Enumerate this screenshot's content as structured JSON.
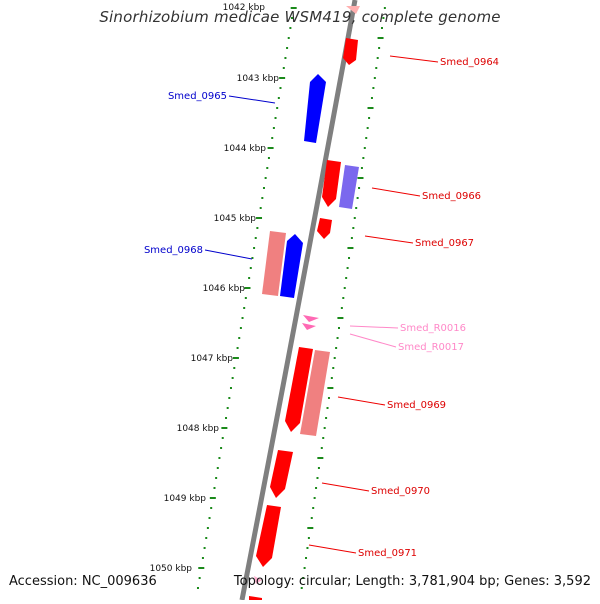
{
  "title": "Sinorhizobium medicae WSM419, complete genome",
  "footer": {
    "accession": "Accession: NC_009636",
    "summary": "Topology: circular; Length: 3,781,904 bp; Genes: 3,592"
  },
  "scale": {
    "ticks": [
      "1042 kbp",
      "1043 kbp",
      "1044 kbp",
      "1045 kbp",
      "1046 kbp",
      "1047 kbp",
      "1048 kbp",
      "1049 kbp",
      "1050 kbp"
    ]
  },
  "colors": {
    "forward_gene": "#ff0000",
    "forward_gene_light": "#f08080",
    "reverse_gene": "#0000ff",
    "reverse_gene_light": "#7b68ee",
    "rna_gene": "#ff69b4",
    "rna_label": "#ff88c8",
    "backbone": "#808080",
    "tick_dots": "#1a8a1a"
  },
  "features": {
    "left": [
      {
        "label": "Smed_0965",
        "strand": "reverse"
      },
      {
        "label": "Smed_0968",
        "strand": "reverse"
      }
    ],
    "right": [
      {
        "label": "Smed_0964",
        "strand": "forward"
      },
      {
        "label": "Smed_0966",
        "strand": "forward"
      },
      {
        "label": "Smed_0967",
        "strand": "forward"
      },
      {
        "label": "Smed_R0016",
        "strand": "rna"
      },
      {
        "label": "Smed_R0017",
        "strand": "rna"
      },
      {
        "label": "Smed_0969",
        "strand": "forward"
      },
      {
        "label": "Smed_0970",
        "strand": "forward"
      },
      {
        "label": "Smed_0971",
        "strand": "forward"
      }
    ]
  }
}
